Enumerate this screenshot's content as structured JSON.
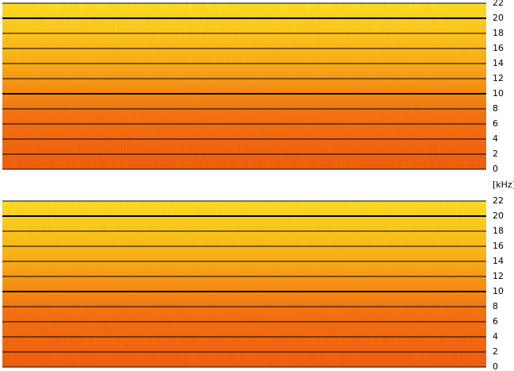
{
  "chart_data": [
    {
      "type": "spectrogram",
      "ylim": [
        0,
        22
      ],
      "yticks": [
        0,
        2,
        4,
        6,
        8,
        10,
        12,
        14,
        16,
        18,
        20,
        22
      ],
      "major_yticks": [
        10,
        20
      ],
      "colors": [
        "#fde82a",
        "#f9b51c",
        "#f06a14",
        "#ec5212"
      ]
    },
    {
      "type": "spectrogram",
      "ylim": [
        0,
        22
      ],
      "yticks": [
        0,
        2,
        4,
        6,
        8,
        10,
        12,
        14,
        16,
        18,
        20,
        22
      ],
      "major_yticks": [
        10,
        20
      ],
      "colors": [
        "#fde82a",
        "#f9b51c",
        "#f06a14",
        "#ec5212"
      ]
    }
  ],
  "axis_label": "[kHz]"
}
